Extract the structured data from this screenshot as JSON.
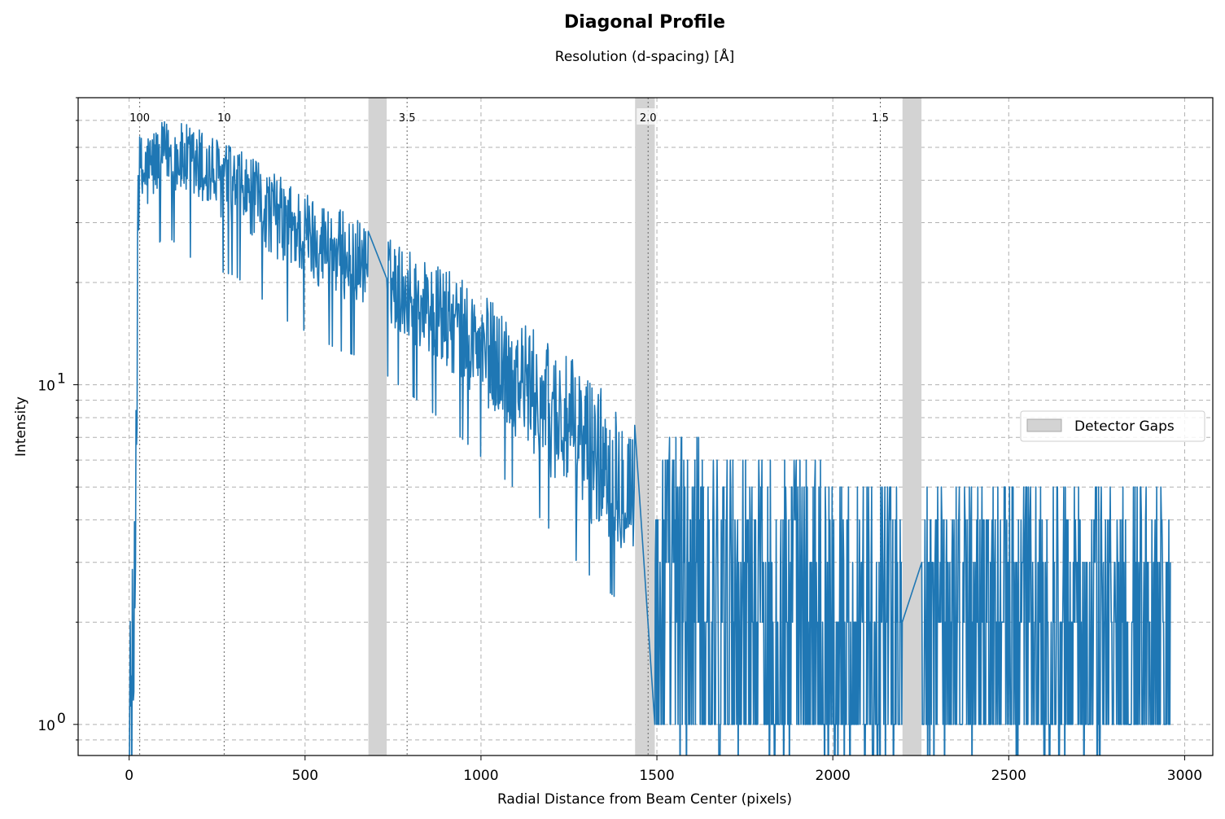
{
  "chart_data": {
    "type": "line",
    "title": "Diagonal Profile",
    "subtitle": "Resolution (d-spacing) [Å]",
    "xlabel": "Radial Distance from Beam Center (pixels)",
    "ylabel": "Intensity",
    "xlim": [
      -145,
      3080
    ],
    "ylim": [
      0.81,
      70
    ],
    "yscale": "log",
    "grid": true,
    "x_ticks": [
      0,
      500,
      1000,
      1500,
      2000,
      2500,
      3000
    ],
    "y_tick_labels": [
      {
        "value": 1,
        "label": "10",
        "exp": "0"
      },
      {
        "value": 10,
        "label": "10",
        "exp": "1"
      }
    ],
    "series_color": "#1f77b4",
    "gap_color": "#d3d3d3",
    "legend": {
      "placement": "center-right",
      "entries": [
        "Detector Gaps"
      ]
    },
    "detector_gaps": [
      [
        680,
        732
      ],
      [
        1438,
        1494
      ],
      [
        2198,
        2252
      ]
    ],
    "resolution_markers": [
      {
        "label": "100",
        "x": 30
      },
      {
        "label": "10",
        "x": 270
      },
      {
        "label": "3.5",
        "x": 790
      },
      {
        "label": "2.0",
        "x": 1475
      },
      {
        "label": "1.5",
        "x": 2135
      }
    ],
    "series": [
      {
        "x_range": [
          0,
          2960
        ],
        "envelope": [
          {
            "x": 0,
            "lo": 0.5,
            "hi": 2
          },
          {
            "x": 15,
            "lo": 0.6,
            "hi": 4
          },
          {
            "x": 25,
            "lo": 28,
            "hi": 55
          },
          {
            "x": 100,
            "lo": 40,
            "hi": 60
          },
          {
            "x": 200,
            "lo": 32,
            "hi": 58
          },
          {
            "x": 300,
            "lo": 30,
            "hi": 50
          },
          {
            "x": 450,
            "lo": 22,
            "hi": 40
          },
          {
            "x": 600,
            "lo": 18,
            "hi": 33
          },
          {
            "x": 680,
            "lo": 17,
            "hi": 30
          },
          {
            "x": 740,
            "lo": 15,
            "hi": 27
          },
          {
            "x": 900,
            "lo": 11,
            "hi": 22
          },
          {
            "x": 1100,
            "lo": 7,
            "hi": 16
          },
          {
            "x": 1300,
            "lo": 4,
            "hi": 11
          },
          {
            "x": 1440,
            "lo": 3,
            "hi": 8
          },
          {
            "x": 1500,
            "lo": 0.8,
            "hi": 7
          },
          {
            "x": 1800,
            "lo": 0.8,
            "hi": 6
          },
          {
            "x": 2200,
            "lo": 0.8,
            "hi": 5
          },
          {
            "x": 2960,
            "lo": 0.8,
            "hi": 4.5
          }
        ]
      }
    ]
  }
}
